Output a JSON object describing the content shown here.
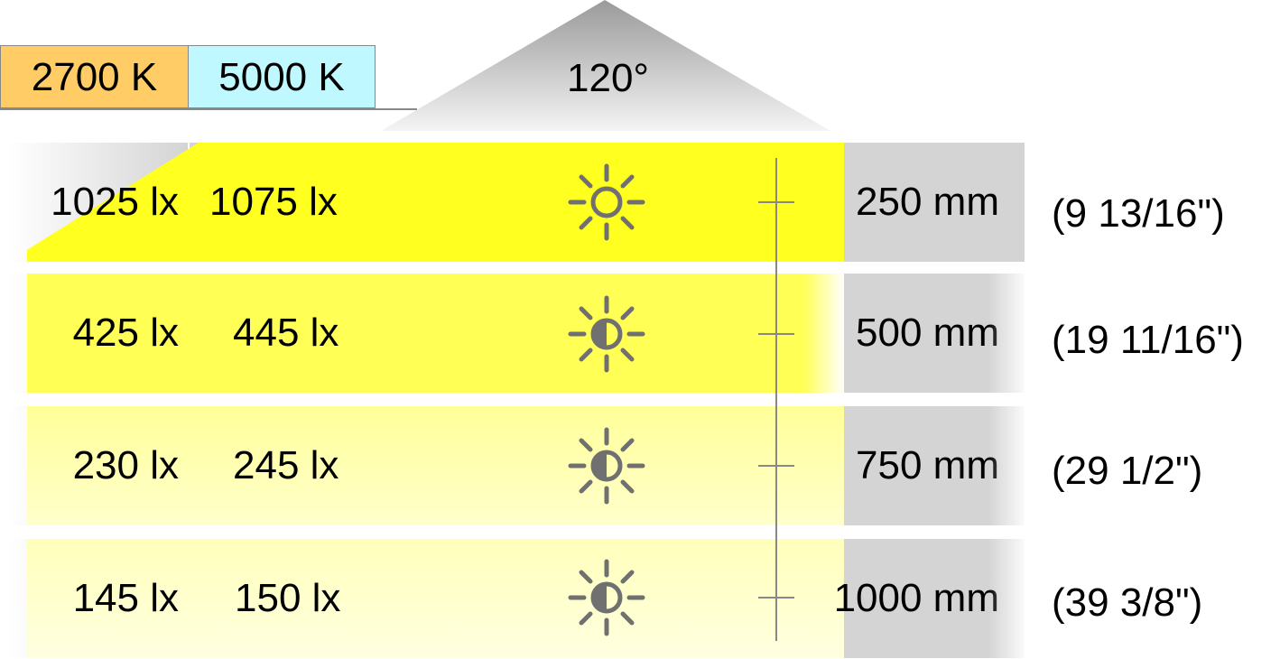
{
  "header": {
    "temp_warm": "2700 K",
    "temp_cool": "5000 K",
    "beam_angle": "120°",
    "colors": {
      "warm": "#ffcc66",
      "cool": "#bff8ff",
      "light": "#ffff00",
      "gray": "#d4d4d4",
      "icon": "#707070"
    }
  },
  "rows": [
    {
      "lux_2700": "1025 lx",
      "lux_5000": "1075 lx",
      "distance_mm": "250 mm",
      "distance_in": "(9 13/16\")",
      "icon": "sun-outline-icon"
    },
    {
      "lux_2700": "425 lx",
      "lux_5000": "445 lx",
      "distance_mm": "500 mm",
      "distance_in": "(19 11/16\")",
      "icon": "sun-half-icon"
    },
    {
      "lux_2700": "230 lx",
      "lux_5000": "245 lx",
      "distance_mm": "750 mm",
      "distance_in": "(29 1/2\")",
      "icon": "sun-half-icon"
    },
    {
      "lux_2700": "145 lx",
      "lux_5000": "150 lx",
      "distance_mm": "1000 mm",
      "distance_in": "(39 3/8\")",
      "icon": "sun-half-icon"
    }
  ]
}
